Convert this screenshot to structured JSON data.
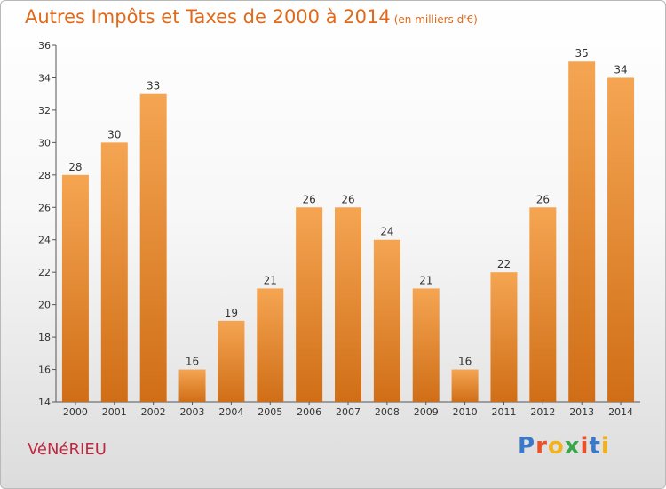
{
  "chart_data": {
    "type": "bar",
    "title": "Autres Impôts et Taxes de 2000 à 2014",
    "subtitle": "(en milliers d'€)",
    "categories": [
      "2000",
      "2001",
      "2002",
      "2003",
      "2004",
      "2005",
      "2006",
      "2007",
      "2008",
      "2009",
      "2010",
      "2011",
      "2012",
      "2013",
      "2014"
    ],
    "values": [
      28,
      30,
      33,
      16,
      19,
      21,
      26,
      26,
      24,
      21,
      16,
      22,
      26,
      35,
      34
    ],
    "ylim": [
      14,
      36
    ],
    "yticks": [
      14,
      16,
      18,
      20,
      22,
      24,
      26,
      28,
      30,
      32,
      34,
      36
    ],
    "grid": false,
    "bar_color": "#f0902f"
  },
  "footer": {
    "place_name": "VéNéRIEU",
    "logo": {
      "letters": [
        {
          "char": "P",
          "color": "#3a78c9"
        },
        {
          "char": "r",
          "color": "#e8522a"
        },
        {
          "char": "o",
          "color": "#f2b21c"
        },
        {
          "char": "x",
          "color": "#3aa64a"
        },
        {
          "char": "i",
          "color": "#e8522a"
        },
        {
          "char": "t",
          "color": "#3a78c9"
        },
        {
          "char": "i",
          "color": "#f2b21c"
        }
      ]
    }
  }
}
